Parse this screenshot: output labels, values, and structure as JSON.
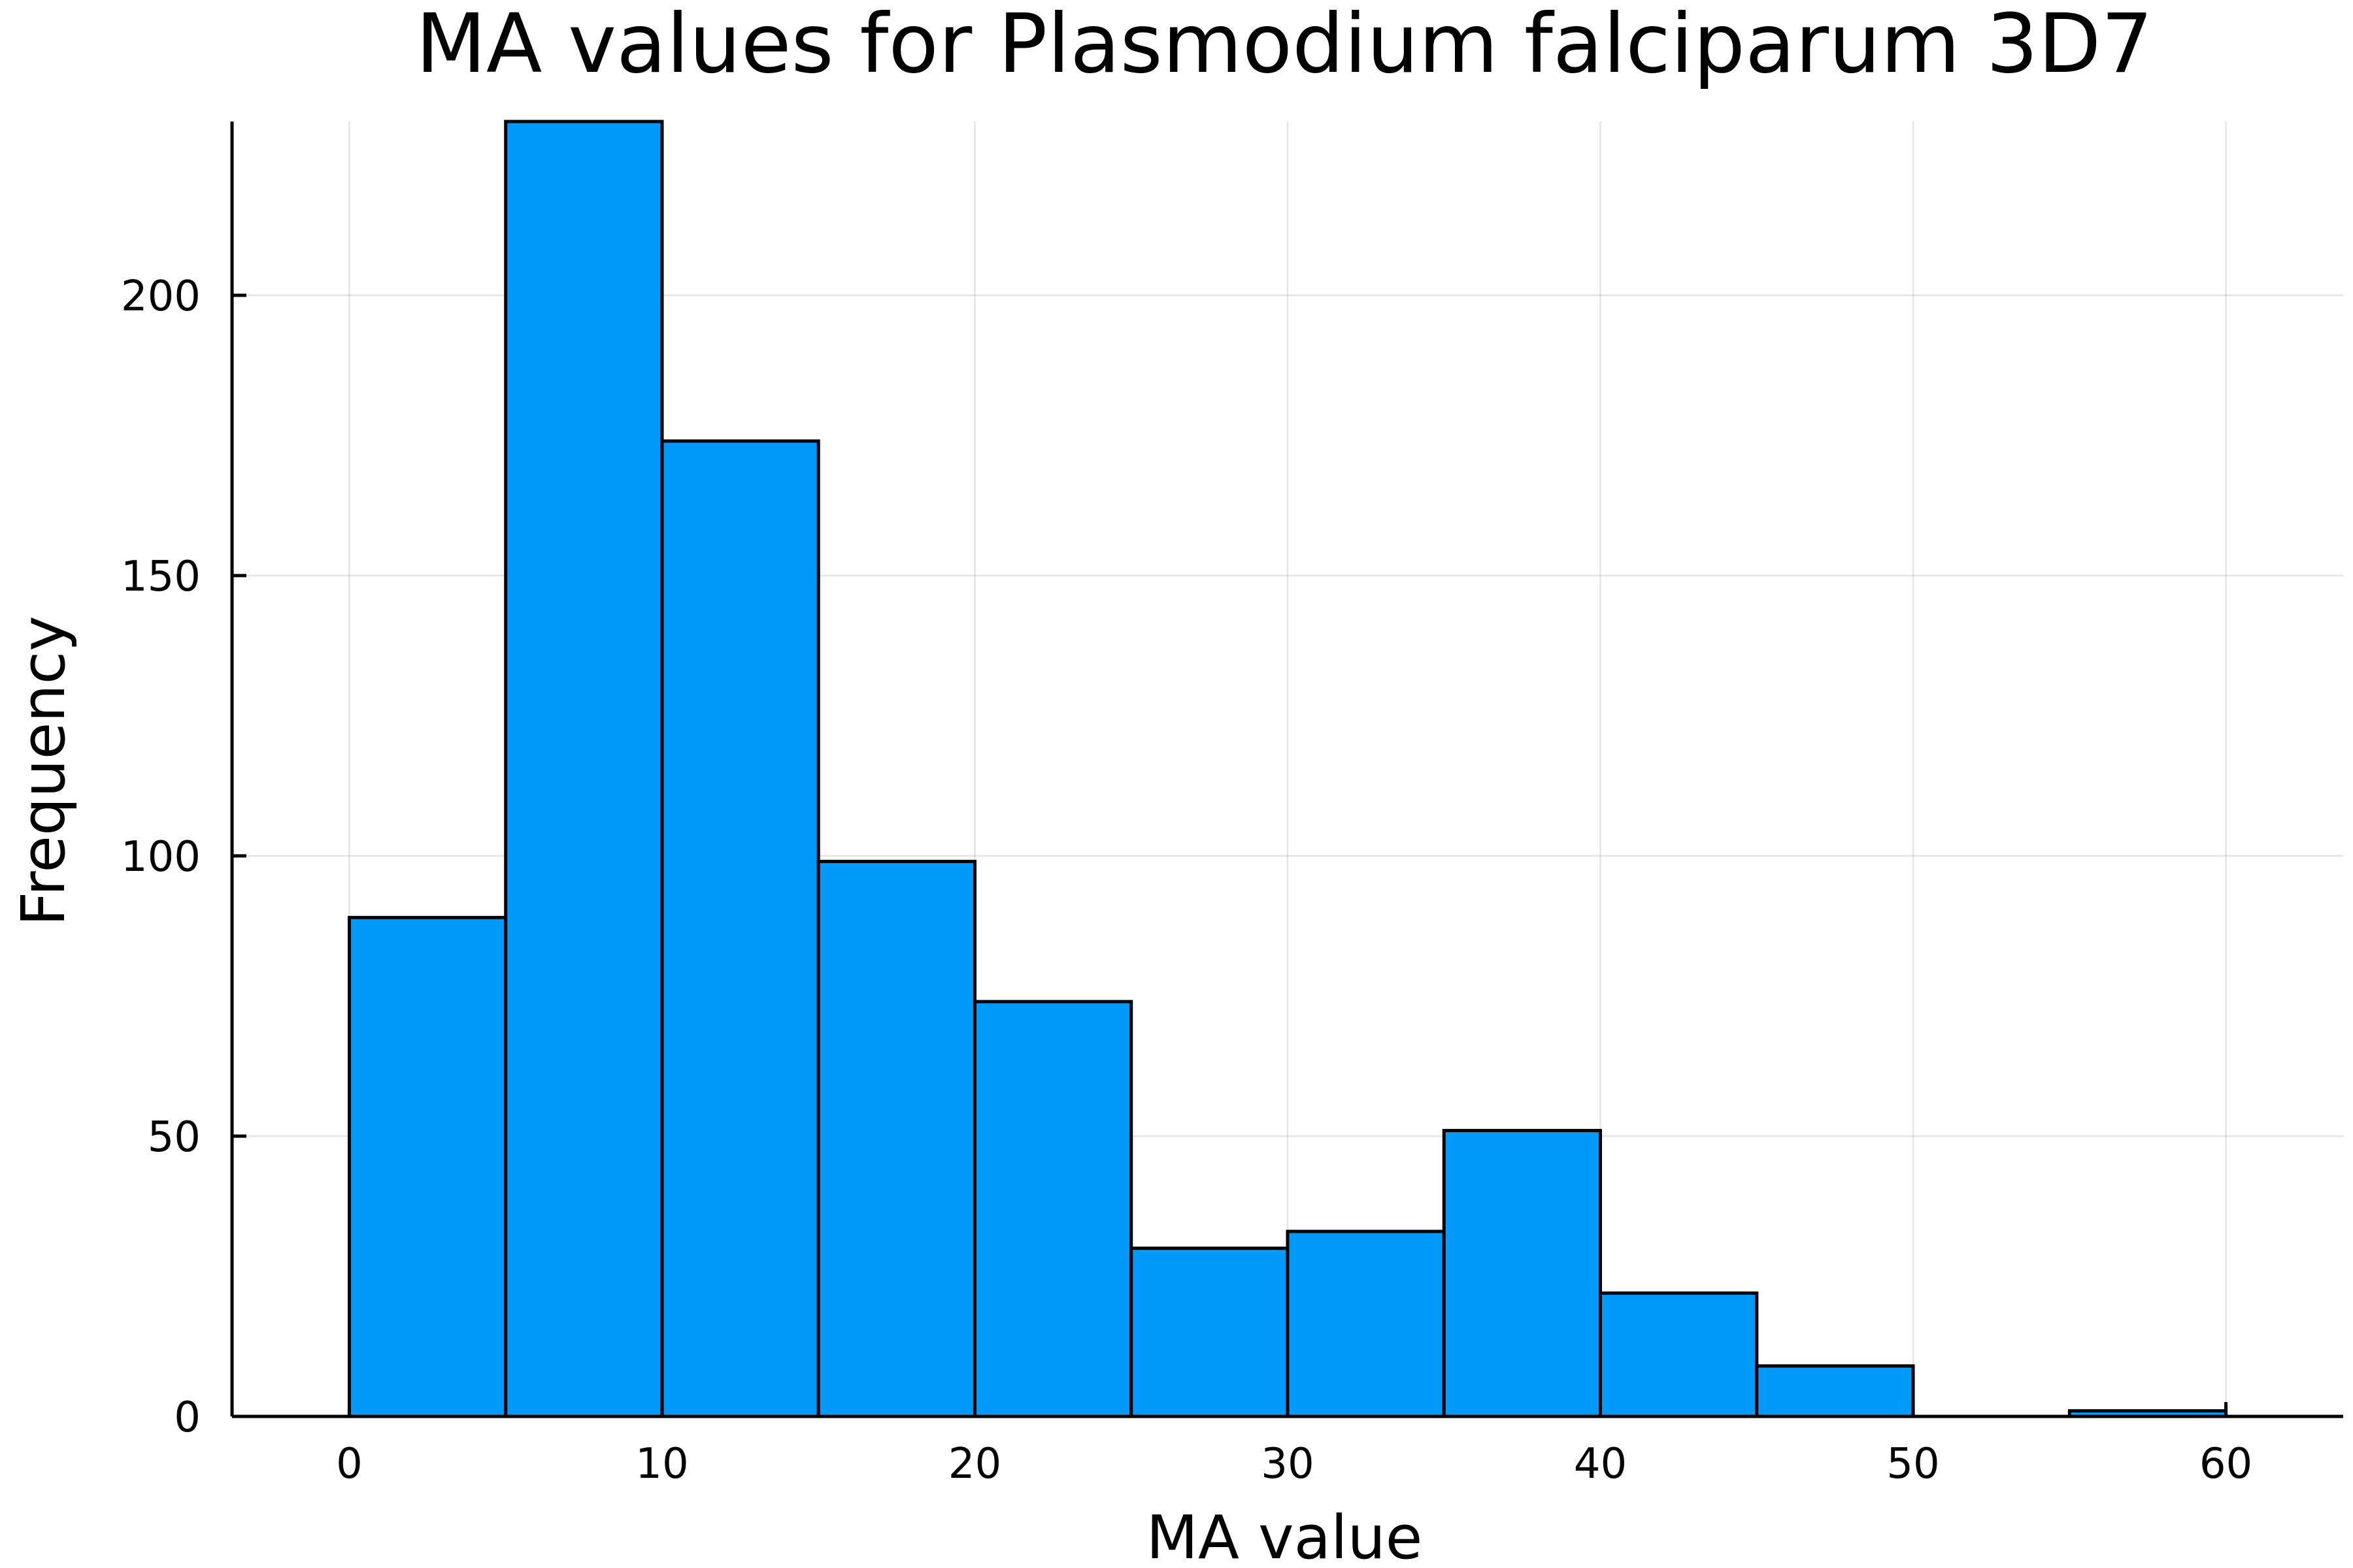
{
  "chart_data": {
    "type": "bar",
    "title": "MA values for Plasmodium falciparum 3D7",
    "xlabel": "MA value",
    "ylabel": "Frequency",
    "bin_edges": [
      0,
      5,
      10,
      15,
      20,
      25,
      30,
      35,
      40,
      45,
      50,
      55,
      60
    ],
    "values": [
      89,
      231,
      174,
      99,
      74,
      30,
      33,
      51,
      22,
      9,
      0,
      1
    ],
    "xlim": [
      -3.75,
      63.75
    ],
    "ylim": [
      0,
      231
    ],
    "xticks": [
      0,
      10,
      20,
      30,
      40,
      50,
      60
    ],
    "yticks": [
      0,
      50,
      100,
      150,
      200
    ],
    "bar_color": "#009AFA",
    "edge_color": "#000000",
    "grid": true,
    "legend": "none"
  }
}
